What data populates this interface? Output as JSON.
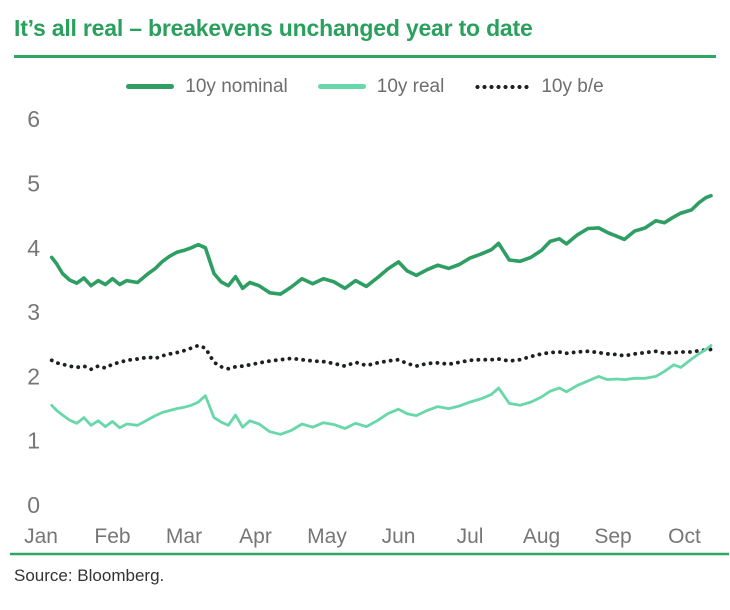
{
  "title": "It’s all real – breakevens unchanged year to date",
  "source": "Source: Bloomberg.",
  "legend": {
    "items": [
      {
        "label": "10y nominal"
      },
      {
        "label": "10y real"
      },
      {
        "label": "10y b/e"
      }
    ]
  },
  "colors": {
    "title_green": "#2aa05d",
    "accent_rule": "#2ea765",
    "nominal_line": "#2e9e63",
    "real_line": "#68d7a9",
    "breakeven_dots": "#1e221f",
    "axis_text": "#767676",
    "legend_text": "#6e6e6e",
    "source_text": "#333333",
    "background": "#ffffff"
  },
  "chart_data": {
    "type": "line",
    "title": "It’s all real – breakevens unchanged year to date",
    "xlabel": "",
    "ylabel": "",
    "x_unit": "months_since_jan_0_indexed",
    "xticklabels": [
      "Jan",
      "Feb",
      "Mar",
      "Apr",
      "May",
      "Jun",
      "Jul",
      "Aug",
      "Sep",
      "Oct"
    ],
    "yticks": [
      0,
      1,
      2,
      3,
      4,
      5,
      6
    ],
    "ylim": [
      0,
      6.3
    ],
    "xlim": [
      -0.35,
      9.65
    ],
    "grid": false,
    "legend_position": "top",
    "x": [
      0.15,
      0.22,
      0.3,
      0.4,
      0.5,
      0.6,
      0.7,
      0.8,
      0.9,
      1.0,
      1.1,
      1.2,
      1.35,
      1.5,
      1.6,
      1.7,
      1.8,
      1.9,
      2.0,
      2.1,
      2.2,
      2.3,
      2.42,
      2.52,
      2.62,
      2.72,
      2.82,
      2.92,
      3.05,
      3.2,
      3.35,
      3.5,
      3.65,
      3.8,
      3.95,
      4.1,
      4.25,
      4.4,
      4.55,
      4.7,
      4.85,
      5.0,
      5.12,
      5.25,
      5.4,
      5.55,
      5.7,
      5.85,
      6.0,
      6.15,
      6.3,
      6.4,
      6.55,
      6.7,
      6.85,
      7.0,
      7.12,
      7.25,
      7.35,
      7.5,
      7.65,
      7.8,
      7.92,
      8.05,
      8.16,
      8.3,
      8.45,
      8.6,
      8.72,
      8.85,
      8.95,
      9.1,
      9.2,
      9.3,
      9.37
    ],
    "series": [
      {
        "name": "10y nominal",
        "style": "solid",
        "color": "#2e9e63",
        "width": 3.6,
        "values": [
          3.85,
          3.75,
          3.6,
          3.5,
          3.45,
          3.53,
          3.41,
          3.49,
          3.43,
          3.52,
          3.43,
          3.49,
          3.46,
          3.6,
          3.68,
          3.79,
          3.87,
          3.93,
          3.96,
          4.0,
          4.05,
          4.0,
          3.6,
          3.47,
          3.41,
          3.55,
          3.37,
          3.46,
          3.41,
          3.3,
          3.28,
          3.39,
          3.52,
          3.44,
          3.52,
          3.47,
          3.37,
          3.49,
          3.4,
          3.53,
          3.67,
          3.78,
          3.64,
          3.57,
          3.66,
          3.73,
          3.68,
          3.74,
          3.84,
          3.9,
          3.97,
          4.07,
          3.81,
          3.79,
          3.85,
          3.96,
          4.1,
          4.14,
          4.06,
          4.2,
          4.3,
          4.31,
          4.24,
          4.18,
          4.13,
          4.26,
          4.31,
          4.42,
          4.39,
          4.48,
          4.54,
          4.59,
          4.7,
          4.78,
          4.81
        ]
      },
      {
        "name": "10y real",
        "style": "solid",
        "color": "#68d7a9",
        "width": 2.8,
        "values": [
          1.55,
          1.47,
          1.4,
          1.32,
          1.27,
          1.36,
          1.24,
          1.31,
          1.22,
          1.3,
          1.2,
          1.26,
          1.24,
          1.33,
          1.39,
          1.44,
          1.47,
          1.5,
          1.52,
          1.55,
          1.6,
          1.7,
          1.36,
          1.29,
          1.24,
          1.4,
          1.21,
          1.31,
          1.26,
          1.14,
          1.1,
          1.16,
          1.26,
          1.21,
          1.28,
          1.25,
          1.19,
          1.27,
          1.22,
          1.31,
          1.42,
          1.49,
          1.42,
          1.39,
          1.47,
          1.53,
          1.5,
          1.54,
          1.6,
          1.65,
          1.72,
          1.82,
          1.58,
          1.55,
          1.6,
          1.68,
          1.77,
          1.82,
          1.76,
          1.86,
          1.93,
          2.0,
          1.95,
          1.96,
          1.95,
          1.97,
          1.97,
          2.0,
          2.08,
          2.18,
          2.14,
          2.27,
          2.35,
          2.42,
          2.48
        ]
      },
      {
        "name": "10y b/e",
        "style": "dotted",
        "color": "#1e221f",
        "width": 3.8,
        "values": [
          2.25,
          2.21,
          2.19,
          2.16,
          2.14,
          2.16,
          2.11,
          2.16,
          2.13,
          2.19,
          2.22,
          2.25,
          2.27,
          2.3,
          2.28,
          2.32,
          2.35,
          2.37,
          2.4,
          2.44,
          2.48,
          2.44,
          2.22,
          2.15,
          2.12,
          2.15,
          2.16,
          2.18,
          2.21,
          2.24,
          2.26,
          2.28,
          2.26,
          2.24,
          2.23,
          2.2,
          2.16,
          2.22,
          2.17,
          2.21,
          2.24,
          2.26,
          2.2,
          2.16,
          2.2,
          2.21,
          2.19,
          2.22,
          2.25,
          2.26,
          2.26,
          2.27,
          2.24,
          2.26,
          2.31,
          2.35,
          2.37,
          2.38,
          2.36,
          2.38,
          2.39,
          2.37,
          2.35,
          2.34,
          2.32,
          2.35,
          2.37,
          2.39,
          2.36,
          2.37,
          2.38,
          2.38,
          2.4,
          2.41,
          2.42
        ]
      }
    ]
  }
}
